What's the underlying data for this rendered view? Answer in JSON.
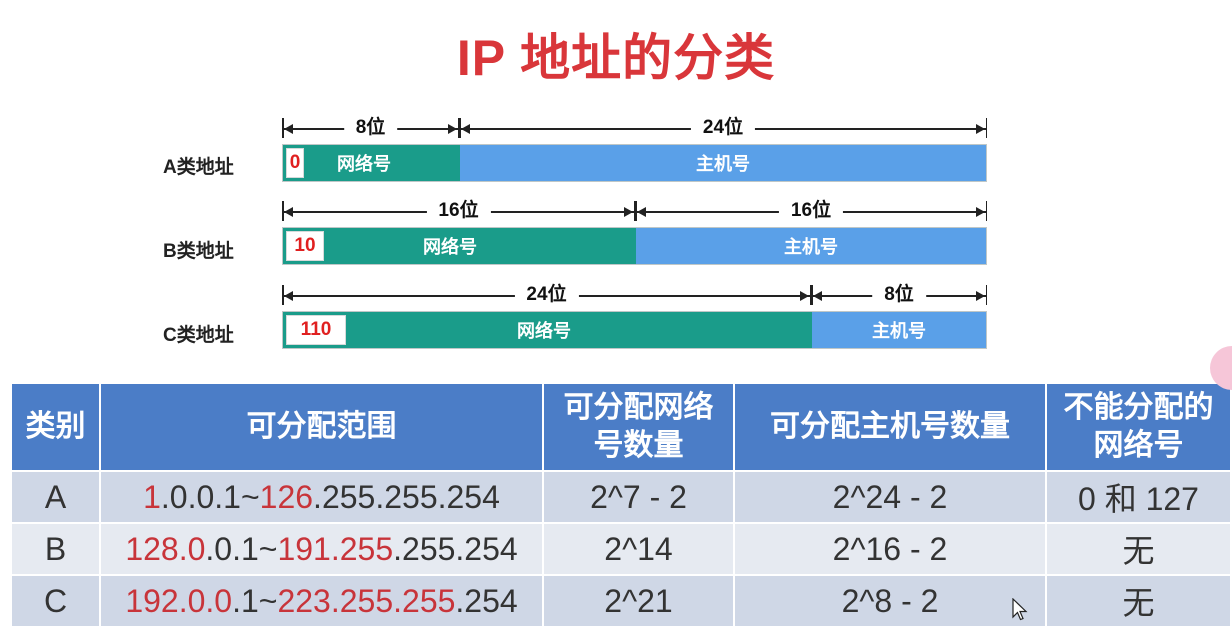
{
  "title": "IP 地址的分类",
  "diagram": {
    "rows": [
      {
        "label": "A类地址",
        "prefix": "0",
        "network_label": "网络号",
        "host_label": "主机号",
        "network_bits": "8位",
        "host_bits": "24位"
      },
      {
        "label": "B类地址",
        "prefix": "10",
        "network_label": "网络号",
        "host_label": "主机号",
        "network_bits": "16位",
        "host_bits": "16位"
      },
      {
        "label": "C类地址",
        "prefix": "110",
        "network_label": "网络号",
        "host_label": "主机号",
        "network_bits": "24位",
        "host_bits": "8位"
      }
    ]
  },
  "table": {
    "headers": [
      "类别",
      "可分配范围",
      "可分配网络号数量",
      "可分配主机号数量",
      "不能分配的网络号"
    ],
    "rows": [
      {
        "class": "A",
        "range_parts": [
          {
            "text": "1",
            "red": true
          },
          {
            "text": ".0.0.1~",
            "red": false
          },
          {
            "text": "126",
            "red": true
          },
          {
            "text": ".255.255.254",
            "red": false
          }
        ],
        "net_count": "2^7 - 2",
        "host_count": "2^24 - 2",
        "reserved": "0 和 127"
      },
      {
        "class": "B",
        "range_parts": [
          {
            "text": "128.0",
            "red": true
          },
          {
            "text": ".0.1~",
            "red": false
          },
          {
            "text": "191.255",
            "red": true
          },
          {
            "text": ".255.254",
            "red": false
          }
        ],
        "net_count": "2^14",
        "host_count": "2^16 - 2",
        "reserved": "无"
      },
      {
        "class": "C",
        "range_parts": [
          {
            "text": "192.0.0",
            "red": true
          },
          {
            "text": ".1~",
            "red": false
          },
          {
            "text": "223.255.255",
            "red": true
          },
          {
            "text": ".254",
            "red": false
          }
        ],
        "net_count": "2^21",
        "host_count": "2^8 - 2",
        "reserved": "无"
      }
    ]
  },
  "colors": {
    "title": "#d9363a",
    "network": "#1a9c8a",
    "host": "#5aa0e8",
    "header": "#4b7dc7",
    "highlight": "#c8343a"
  },
  "icons": {
    "cursor": "mouse-pointer-icon"
  }
}
